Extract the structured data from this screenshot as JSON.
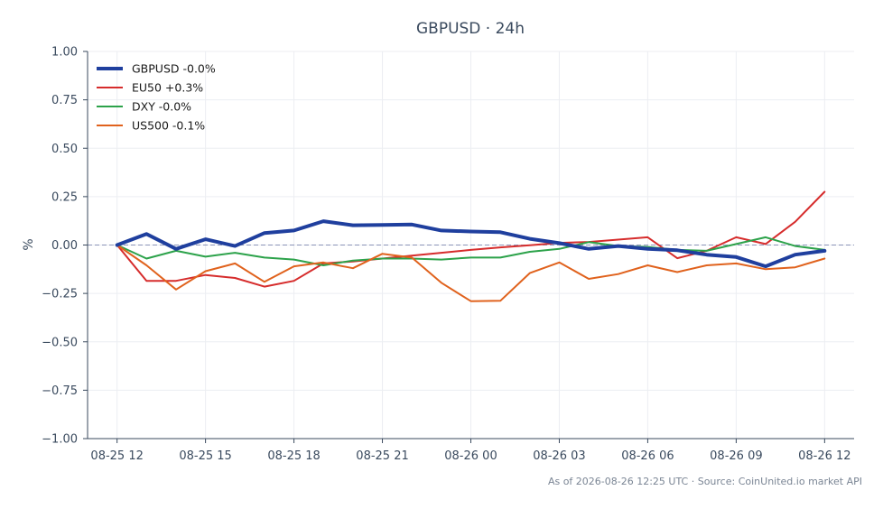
{
  "chart_data": {
    "type": "line",
    "title": "GBPUSD · 24h",
    "ylabel": "%",
    "xlabel": "",
    "ylim": [
      -1.0,
      1.0
    ],
    "yticks": [
      1.0,
      0.75,
      0.5,
      0.25,
      0.0,
      -0.25,
      -0.5,
      -0.75,
      -1.0
    ],
    "ytick_labels": [
      "1.00",
      "0.75",
      "0.50",
      "0.25",
      "0.00",
      "−0.25",
      "−0.50",
      "−0.75",
      "−1.00"
    ],
    "x_range": [
      "2026-08-25 11:00",
      "2026-08-26 13:00"
    ],
    "xticks": [
      {
        "x": "2026-08-25 12:00",
        "label": "08-25 12"
      },
      {
        "x": "2026-08-25 15:00",
        "label": "08-25 15"
      },
      {
        "x": "2026-08-25 18:00",
        "label": "08-25 18"
      },
      {
        "x": "2026-08-25 21:00",
        "label": "08-25 21"
      },
      {
        "x": "2026-08-26 00:00",
        "label": "08-26 00"
      },
      {
        "x": "2026-08-26 03:00",
        "label": "08-26 03"
      },
      {
        "x": "2026-08-26 06:00",
        "label": "08-26 06"
      },
      {
        "x": "2026-08-26 09:00",
        "label": "08-26 09"
      },
      {
        "x": "2026-08-26 12:00",
        "label": "08-26 12"
      }
    ],
    "grid": true,
    "zero_line": true,
    "legend_position": "top-left",
    "x": [
      "2026-08-25 12:00",
      "2026-08-25 13:00",
      "2026-08-25 14:00",
      "2026-08-25 15:00",
      "2026-08-25 16:00",
      "2026-08-25 17:00",
      "2026-08-25 18:00",
      "2026-08-25 19:00",
      "2026-08-25 20:00",
      "2026-08-25 21:00",
      "2026-08-25 22:00",
      "2026-08-25 23:00",
      "2026-08-26 00:00",
      "2026-08-26 01:00",
      "2026-08-26 02:00",
      "2026-08-26 03:00",
      "2026-08-26 04:00",
      "2026-08-26 05:00",
      "2026-08-26 06:00",
      "2026-08-26 07:00",
      "2026-08-26 08:00",
      "2026-08-26 09:00",
      "2026-08-26 10:00",
      "2026-08-26 11:00",
      "2026-08-26 12:00"
    ],
    "series": [
      {
        "name": "GBPUSD -0.0%",
        "color": "#1f3f9e",
        "emphasis": true,
        "values": [
          0.0,
          0.057,
          -0.02,
          0.03,
          -0.005,
          0.062,
          0.075,
          0.123,
          0.102,
          0.104,
          0.106,
          0.075,
          0.07,
          0.066,
          0.032,
          0.01,
          -0.02,
          -0.005,
          -0.02,
          -0.027,
          -0.05,
          -0.062,
          -0.11,
          -0.05,
          -0.03
        ]
      },
      {
        "name": "EU50 +0.3%",
        "color": "#d62c2c",
        "values": [
          0.0,
          -0.185,
          -0.185,
          -0.155,
          -0.17,
          -0.215,
          -0.185,
          -0.095,
          -0.085,
          -0.07,
          -0.055,
          -0.04,
          -0.025,
          -0.012,
          -0.001,
          0.011,
          0.016,
          0.028,
          0.04,
          -0.068,
          -0.03,
          0.04,
          0.005,
          0.12,
          0.275
        ]
      },
      {
        "name": "DXY -0.0%",
        "color": "#2ca24a",
        "values": [
          0.0,
          -0.07,
          -0.03,
          -0.06,
          -0.04,
          -0.065,
          -0.075,
          -0.105,
          -0.08,
          -0.07,
          -0.07,
          -0.075,
          -0.065,
          -0.065,
          -0.035,
          -0.02,
          0.015,
          -0.005,
          -0.01,
          -0.025,
          -0.03,
          0.005,
          0.04,
          -0.005,
          -0.025
        ]
      },
      {
        "name": "US500 -0.1%",
        "color": "#e0621d",
        "values": [
          0.0,
          -0.105,
          -0.23,
          -0.135,
          -0.095,
          -0.19,
          -0.11,
          -0.09,
          -0.12,
          -0.045,
          -0.065,
          -0.195,
          -0.29,
          -0.288,
          -0.145,
          -0.09,
          -0.175,
          -0.15,
          -0.105,
          -0.14,
          -0.105,
          -0.095,
          -0.125,
          -0.115,
          -0.07
        ]
      }
    ],
    "footer": "As of 2026-08-26 12:25 UTC · Source: CoinUnited.io market API"
  }
}
